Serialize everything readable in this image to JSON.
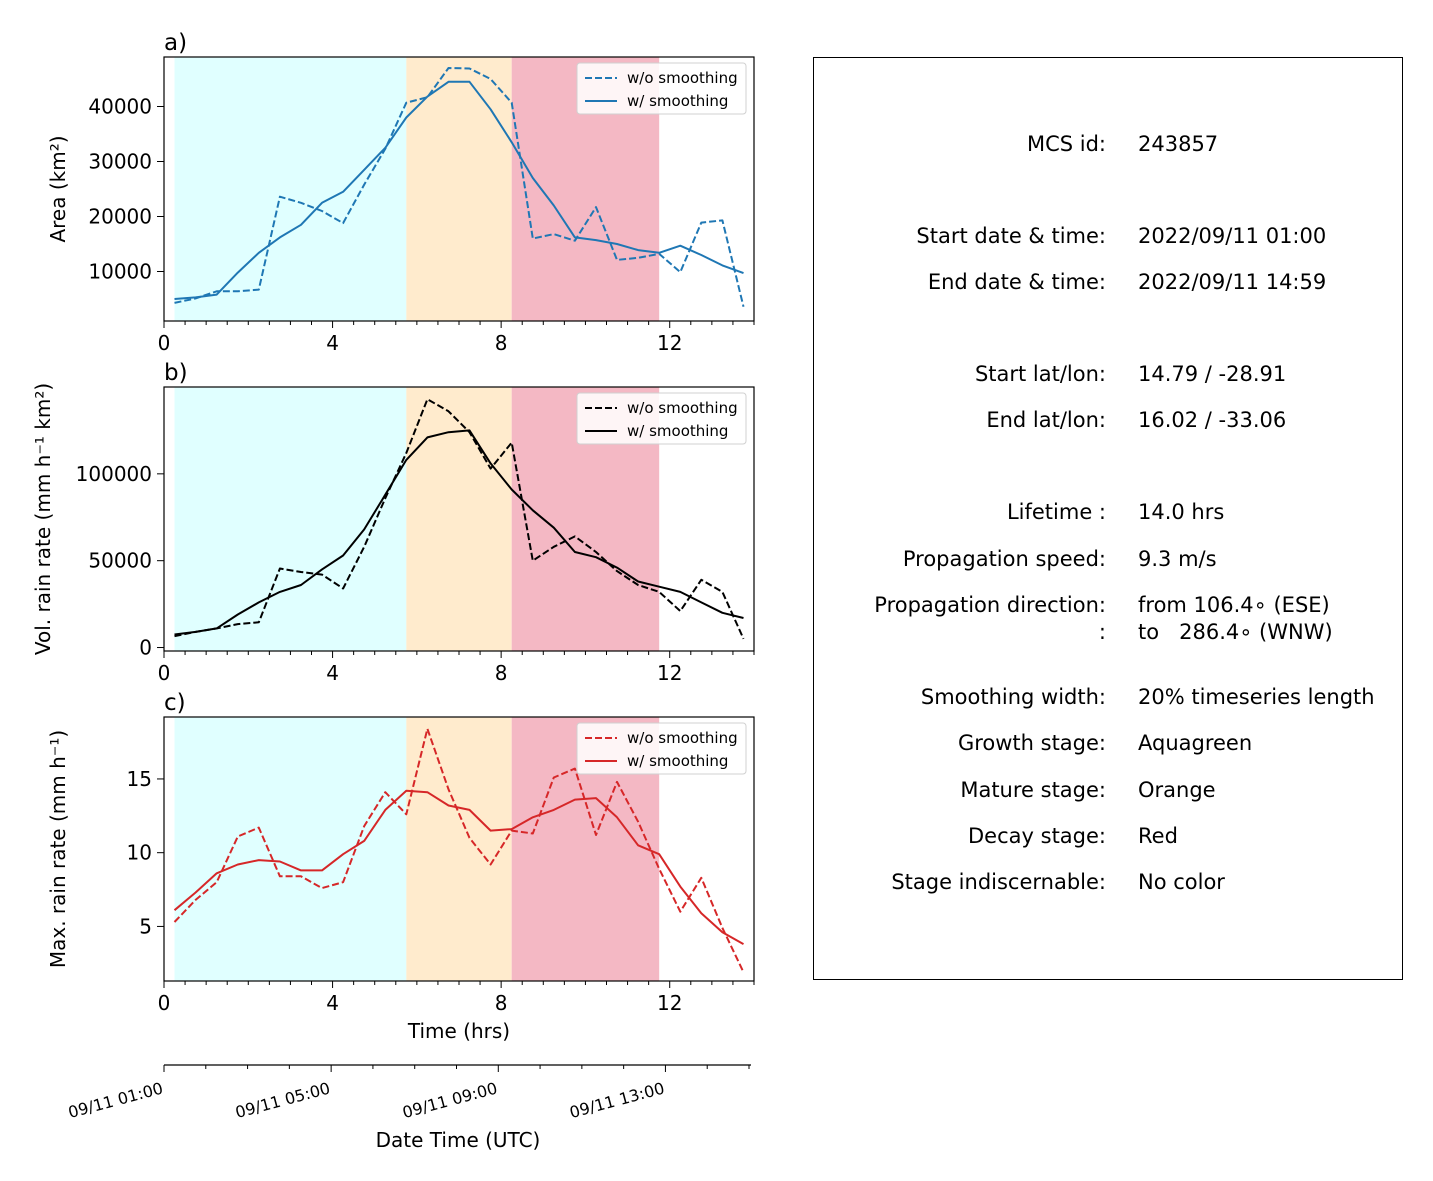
{
  "chart_data": [
    {
      "type": "line",
      "panel_label": "a)",
      "ylabel": "Area  (km²)",
      "xlabel": "",
      "xlim": [
        0,
        14
      ],
      "xticks": [
        0,
        4,
        8,
        12
      ],
      "ylim": [
        1000,
        49000
      ],
      "yticks": [
        10000,
        20000,
        30000,
        40000
      ],
      "color": "#1f77b4",
      "x": [
        0.25,
        0.75,
        1.25,
        1.75,
        2.25,
        2.75,
        3.25,
        3.75,
        4.25,
        4.75,
        5.25,
        5.75,
        6.25,
        6.75,
        7.25,
        7.75,
        8.25,
        8.75,
        9.25,
        9.75,
        10.25,
        10.75,
        11.25,
        11.75,
        12.25,
        12.75,
        13.25,
        13.75
      ],
      "series": [
        {
          "name": "w/o smoothing",
          "style": "dashed",
          "values": [
            4300,
            5100,
            6400,
            6400,
            6700,
            23600,
            22500,
            21000,
            18800,
            25800,
            32300,
            40700,
            41700,
            47000,
            46900,
            45000,
            40700,
            16000,
            16800,
            15600,
            21700,
            12100,
            12500,
            13200,
            9900,
            18900,
            19300,
            3600
          ]
        },
        {
          "name": "w/ smoothing",
          "style": "solid",
          "values": [
            5000,
            5300,
            5800,
            9800,
            13400,
            16200,
            18500,
            22500,
            24500,
            28500,
            32500,
            38000,
            41800,
            44500,
            44500,
            39500,
            33500,
            27000,
            22000,
            16200,
            15700,
            15000,
            13900,
            13400,
            14700,
            13000,
            11100,
            9700
          ]
        }
      ]
    },
    {
      "type": "line",
      "panel_label": "b)",
      "ylabel": "Vol. rain rate (mm h⁻¹ km²)",
      "xlabel": "",
      "xlim": [
        0,
        14
      ],
      "xticks": [
        0,
        4,
        8,
        12
      ],
      "ylim": [
        -2000,
        150000
      ],
      "yticks": [
        0,
        50000,
        100000
      ],
      "color": "#000000",
      "x": [
        0.25,
        0.75,
        1.25,
        1.75,
        2.25,
        2.75,
        3.25,
        3.75,
        4.25,
        4.75,
        5.25,
        5.75,
        6.25,
        6.75,
        7.25,
        7.75,
        8.25,
        8.75,
        9.25,
        9.75,
        10.25,
        10.75,
        11.25,
        11.75,
        12.25,
        12.75,
        13.25,
        13.75
      ],
      "series": [
        {
          "name": "w/o smoothing",
          "style": "dashed",
          "values": [
            6500,
            9000,
            11000,
            13500,
            14500,
            45500,
            43500,
            42000,
            34000,
            58000,
            86000,
            112000,
            143000,
            136000,
            124000,
            103000,
            118000,
            50000,
            58000,
            64000,
            55000,
            44000,
            36000,
            32000,
            21000,
            39000,
            32000,
            5000
          ]
        },
        {
          "name": "w/ smoothing",
          "style": "solid",
          "values": [
            7500,
            9000,
            11000,
            19000,
            26000,
            32000,
            36000,
            45000,
            53000,
            68000,
            88000,
            108000,
            121000,
            124000,
            125000,
            106000,
            91000,
            79000,
            69000,
            55000,
            52000,
            46000,
            38000,
            35000,
            32000,
            26000,
            20000,
            17000
          ]
        }
      ]
    },
    {
      "type": "line",
      "panel_label": "c)",
      "ylabel": "Max. rain rate  (mm h⁻¹)",
      "xlabel": "Time (hrs)",
      "xlim": [
        0,
        14
      ],
      "xticks": [
        0,
        4,
        8,
        12
      ],
      "ylim": [
        1.3,
        19.2
      ],
      "yticks": [
        5,
        10,
        15
      ],
      "color": "#d62728",
      "x": [
        0.25,
        0.75,
        1.25,
        1.75,
        2.25,
        2.75,
        3.25,
        3.75,
        4.25,
        4.75,
        5.25,
        5.75,
        6.25,
        6.75,
        7.25,
        7.75,
        8.25,
        8.75,
        9.25,
        9.75,
        10.25,
        10.75,
        11.25,
        11.75,
        12.25,
        12.75,
        13.25,
        13.75
      ],
      "series": [
        {
          "name": "w/o smoothing",
          "style": "dashed",
          "values": [
            5.3,
            6.8,
            8.0,
            11.1,
            11.7,
            8.4,
            8.4,
            7.6,
            8.0,
            11.8,
            14.1,
            12.6,
            18.4,
            14.3,
            11.0,
            9.2,
            11.5,
            11.3,
            15.1,
            15.7,
            11.2,
            14.8,
            12.1,
            8.9,
            6.0,
            8.3,
            4.9,
            1.9
          ]
        },
        {
          "name": "w/ smoothing",
          "style": "solid",
          "values": [
            6.1,
            7.3,
            8.6,
            9.2,
            9.5,
            9.4,
            8.8,
            8.8,
            9.9,
            10.8,
            12.9,
            14.2,
            14.1,
            13.2,
            12.9,
            11.5,
            11.6,
            12.4,
            12.9,
            13.6,
            13.7,
            12.4,
            10.5,
            9.9,
            7.7,
            5.9,
            4.6,
            3.8
          ]
        }
      ]
    }
  ],
  "stage_bands": [
    {
      "stage": "growth",
      "x_start": 0.25,
      "x_end": 5.75,
      "color": "#e0ffff"
    },
    {
      "stage": "mature",
      "x_start": 5.75,
      "x_end": 8.25,
      "color": "#ffebcd"
    },
    {
      "stage": "decay",
      "x_start": 8.25,
      "x_end": 11.75,
      "color": "#f4b8c4"
    }
  ],
  "datetime_axis": {
    "label": "Date Time (UTC)",
    "tick_hours": [
      0,
      4,
      8,
      12
    ],
    "tick_labels": [
      "09/11 01:00",
      "09/11 05:00",
      "09/11 09:00",
      "09/11 13:00"
    ]
  },
  "info_panel": {
    "rows": [
      {
        "key": "MCS id:",
        "value": "243857"
      },
      {
        "key": "Start date & time:",
        "value": "2022/09/11 01:00"
      },
      {
        "key": "End date & time:",
        "value": "2022/09/11 14:59"
      },
      {
        "key": "Start lat/lon:",
        "value": "14.79 / -28.91"
      },
      {
        "key": "End lat/lon:",
        "value": "16.02 / -33.06"
      },
      {
        "key": "Lifetime :",
        "value": "14.0 hrs"
      },
      {
        "key": "Propagation speed:",
        "value": "9.3 m/s"
      },
      {
        "key": "Propagation direction:",
        "value": "from 106.4∘ (ESE)"
      },
      {
        "key": ":",
        "value": "to   286.4∘ (WNW)"
      },
      {
        "key": "Smoothing width:",
        "value": "20% timeseries length"
      },
      {
        "key": "Growth stage:",
        "value": "Aquagreen"
      },
      {
        "key": "Mature stage:",
        "value": "Orange"
      },
      {
        "key": "Decay stage:",
        "value": "Red"
      },
      {
        "key": "Stage indiscernable:",
        "value": "No color"
      }
    ]
  }
}
